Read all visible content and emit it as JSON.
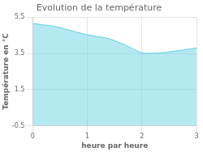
{
  "chart_data": {
    "type": "area",
    "title": "Evolution de la température",
    "xlabel": "heure par heure",
    "ylabel": "Température en °C",
    "x": [
      0,
      0.083,
      0.167,
      0.25,
      0.333,
      0.417,
      0.5,
      0.583,
      0.667,
      0.75,
      0.833,
      0.917,
      1.0,
      1.083,
      1.167,
      1.25,
      1.333,
      1.417,
      1.5,
      1.583,
      1.667,
      1.75,
      1.833,
      1.917,
      2.0,
      2.083,
      2.167,
      2.25,
      2.333,
      2.417,
      2.5,
      2.583,
      2.667,
      2.75,
      2.833,
      2.917,
      3.0
    ],
    "values": [
      5.15,
      5.12,
      5.08,
      5.05,
      5.02,
      4.98,
      4.92,
      4.85,
      4.78,
      4.72,
      4.65,
      4.58,
      4.52,
      4.48,
      4.44,
      4.4,
      4.35,
      4.28,
      4.2,
      4.1,
      4.0,
      3.88,
      3.75,
      3.62,
      3.52,
      3.5,
      3.5,
      3.51,
      3.52,
      3.55,
      3.58,
      3.62,
      3.65,
      3.68,
      3.72,
      3.76,
      3.8
    ],
    "color": "#5bcfdf",
    "xlim": [
      0,
      3
    ],
    "xticks": [
      0,
      1,
      2,
      3
    ],
    "ylim": [
      -0.5,
      5.5
    ],
    "yticks": [
      -0.5,
      1.5,
      3.5,
      5.5
    ],
    "grid": true
  }
}
